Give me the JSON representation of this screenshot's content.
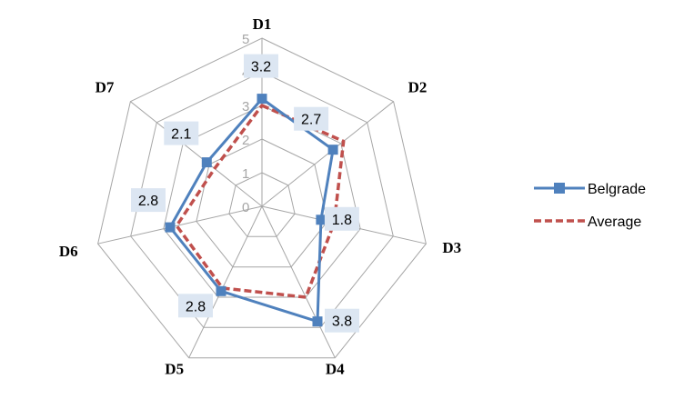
{
  "chart_data": {
    "type": "radar",
    "categories": [
      "D1",
      "D2",
      "D3",
      "D4",
      "D5",
      "D6",
      "D7"
    ],
    "rmin": 0,
    "rmax": 5,
    "ticks": [
      "0",
      "1",
      "2",
      "3",
      "4",
      "5"
    ],
    "grid": true,
    "legend_position": "right",
    "series": [
      {
        "name": "Belgrade",
        "values": [
          3.2,
          2.7,
          1.8,
          3.8,
          2.8,
          2.8,
          2.1
        ],
        "data_labels": [
          "3.2",
          "2.7",
          "1.8",
          "3.8",
          "2.8",
          "2.8",
          "2.1"
        ],
        "color": "#4f81bd",
        "style": "solid",
        "marker": "square"
      },
      {
        "name": "Average",
        "values": [
          3.0,
          3.1,
          2.2,
          3.0,
          2.7,
          2.6,
          1.8
        ],
        "color": "#c0504d",
        "style": "dashed",
        "marker": "none"
      }
    ],
    "label_background": "#dce6f2"
  }
}
